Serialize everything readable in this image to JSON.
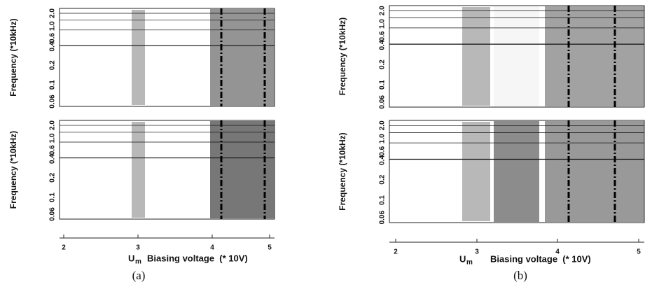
{
  "figures": [
    {
      "caption": "(a)",
      "y_axis_label": "Frequency (*10kHz)",
      "y_ticks": [
        "2.0",
        "1.0",
        "0.6",
        "0.4",
        "0.2",
        "0.1",
        "0.06"
      ],
      "x_ticks": [
        "2",
        "3",
        "4",
        "5"
      ],
      "x_marker": "U",
      "x_marker_sub": "m",
      "x_axis_label": "Biasing voltage  (* 10V)"
    },
    {
      "caption": "(b)",
      "y_axis_label": "Frequency (*10kHz)",
      "y_ticks": [
        "2.0",
        "1.0",
        "0.6",
        "0.4",
        "0.2",
        "0.1",
        "0.06"
      ],
      "x_ticks": [
        "2",
        "3",
        "4",
        "5"
      ],
      "x_marker": "U",
      "x_marker_sub": "m",
      "x_axis_label": "Biasing voltage  (* 10V)"
    }
  ]
}
